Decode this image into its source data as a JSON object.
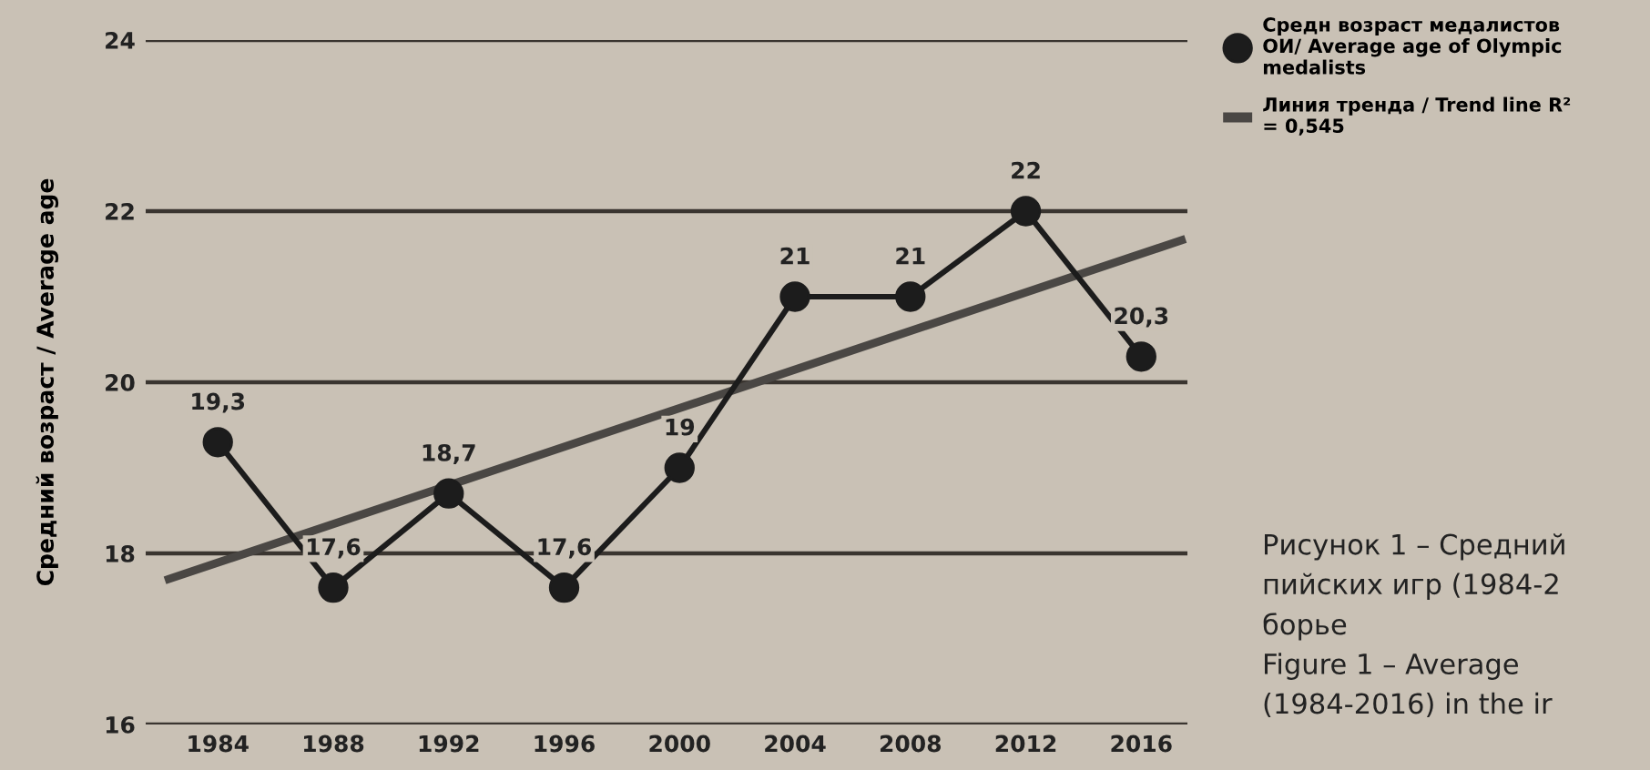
{
  "chart_data": {
    "type": "line",
    "ylabel": "Средний возраст / Average age",
    "x": [
      1984,
      1988,
      1992,
      1996,
      2000,
      2004,
      2008,
      2012,
      2016
    ],
    "series": [
      {
        "name": "Средн возраст медалистов\nОИ/ Average age of Olympic\nmedalists",
        "color": "#1c1c1c",
        "marker": "circle",
        "values": [
          19.3,
          17.6,
          18.7,
          17.6,
          19,
          21,
          21,
          22,
          20.3
        ],
        "value_labels": [
          "19,3",
          "17,6",
          "18,7",
          "17,6",
          "19",
          "21",
          "21",
          "22",
          "20,3"
        ]
      },
      {
        "name": "Линия тренда / Trend line R²\n= 0,545",
        "color": "#4a4744",
        "marker": "none",
        "x": [
          1982.3,
          2017.4
        ],
        "values": [
          17.7,
          21.66
        ]
      }
    ],
    "xlim": [
      1981.5,
      2017.6
    ],
    "xticks": [
      1984,
      1988,
      1992,
      1996,
      2000,
      2004,
      2008,
      2012,
      2016
    ],
    "ylim": [
      16,
      24
    ],
    "yticks": [
      16,
      18,
      20,
      22,
      24
    ],
    "grid": "y",
    "legend": "top right",
    "annotations": [
      "Рисунок 1 – Средний\nпийских игр (1984-2\nборье\nFigure 1 – Average\n(1984-2016) in the ir"
    ]
  }
}
